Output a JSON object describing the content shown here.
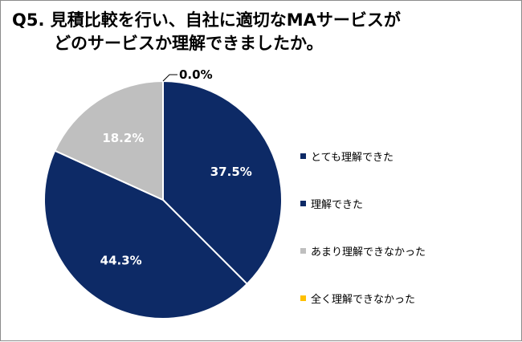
{
  "title": {
    "line1": "Q5. 見積比較を行い、自社に適切なMAサービスが",
    "line2": "どのサービスか理解できましたか。"
  },
  "chart_data": {
    "type": "pie",
    "categories": [
      "とても理解できた",
      "理解できた",
      "あまり理解できなかった",
      "全く理解できなかった"
    ],
    "values": [
      37.5,
      44.3,
      18.2,
      0.0
    ],
    "labels": [
      "37.5%",
      "44.3%",
      "18.2%",
      "0.0%"
    ],
    "colors": [
      "#0d2a66",
      "#0d2a66",
      "#bfbfbf",
      "#ffc000"
    ],
    "label_colors": [
      "#ffffff",
      "#ffffff",
      "#ffffff",
      "#000000"
    ],
    "legend_position": "right",
    "start_angle": "top",
    "direction": "clockwise"
  }
}
